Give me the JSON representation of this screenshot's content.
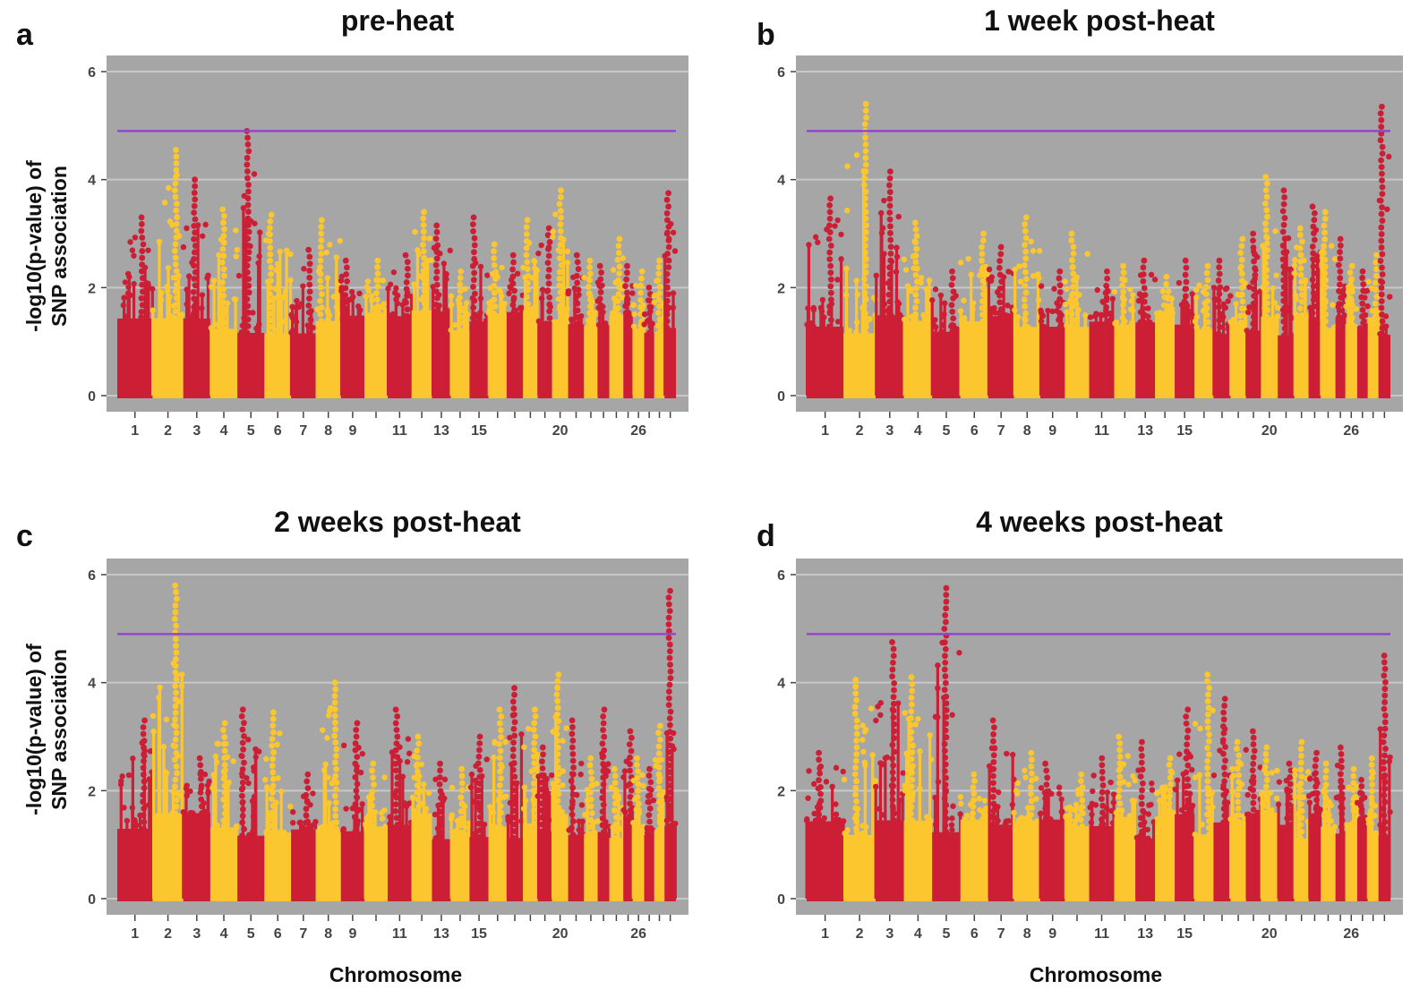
{
  "axis": {
    "ylabel_line1": "-log10(p-value) of",
    "ylabel_line2": "SNP association",
    "xlabel": "Chromosome"
  },
  "colors": {
    "odd_chromosome": "#cc1e35",
    "even_chromosome": "#fcc72e",
    "threshold_line": "#9046cf",
    "panel_background": "#a6a6a6",
    "gridline": "#c8c8c8"
  },
  "chart_data": [
    {
      "type": "scatter",
      "letter": "a",
      "title": "pre-heat",
      "xlabel": "Chromosome",
      "ylabel": "-log10(p-value) of SNP association",
      "ylim": [
        0,
        6.3
      ],
      "yticks": [
        0,
        2,
        4,
        6
      ],
      "threshold": 4.9,
      "xtick_labels": [
        "1",
        "2",
        "3",
        "4",
        "5",
        "6",
        "7",
        "8",
        "9",
        "11",
        "13",
        "15",
        "20",
        "26"
      ],
      "chromosome_peaks": [
        3.3,
        4.55,
        4.0,
        3.45,
        4.9,
        3.35,
        2.7,
        3.25,
        2.5,
        2.5,
        2.6,
        3.4,
        3.15,
        2.3,
        3.3,
        2.8,
        2.6,
        3.25,
        3.1,
        3.8,
        2.6,
        2.5,
        2.4,
        2.9,
        2.4,
        2.3,
        2.0,
        2.5,
        3.75
      ]
    },
    {
      "type": "scatter",
      "letter": "b",
      "title": "1 week post-heat",
      "xlabel": "Chromosome",
      "ylabel": "-log10(p-value) of SNP association",
      "ylim": [
        0,
        6.3
      ],
      "yticks": [
        0,
        2,
        4,
        6
      ],
      "threshold": 4.9,
      "xtick_labels": [
        "1",
        "2",
        "3",
        "4",
        "5",
        "6",
        "7",
        "8",
        "9",
        "11",
        "13",
        "15",
        "20",
        "26"
      ],
      "chromosome_peaks": [
        3.65,
        5.4,
        4.15,
        3.2,
        2.3,
        3.0,
        2.75,
        3.3,
        2.3,
        3.0,
        2.3,
        2.4,
        2.5,
        2.2,
        2.5,
        2.4,
        2.5,
        2.9,
        3.0,
        4.05,
        3.8,
        3.1,
        3.5,
        3.4,
        2.9,
        2.4,
        2.3,
        2.6,
        5.35
      ]
    },
    {
      "type": "scatter",
      "letter": "c",
      "title": "2 weeks post-heat",
      "xlabel": "Chromosome",
      "ylabel": "-log10(p-value) of SNP association",
      "ylim": [
        0,
        6.3
      ],
      "yticks": [
        0,
        2,
        4,
        6
      ],
      "threshold": 4.9,
      "xtick_labels": [
        "1",
        "2",
        "3",
        "4",
        "5",
        "6",
        "7",
        "8",
        "9",
        "11",
        "13",
        "15",
        "20",
        "26"
      ],
      "chromosome_peaks": [
        3.3,
        5.8,
        2.6,
        3.25,
        3.5,
        3.45,
        2.3,
        4.0,
        3.25,
        2.5,
        3.5,
        3.0,
        2.5,
        2.4,
        3.0,
        3.5,
        3.9,
        3.5,
        2.8,
        4.15,
        3.3,
        2.6,
        3.5,
        2.4,
        3.1,
        2.6,
        2.4,
        3.2,
        5.7
      ]
    },
    {
      "type": "scatter",
      "letter": "d",
      "title": "4 weeks post-heat",
      "xlabel": "Chromosome",
      "ylabel": "-log10(p-value) of SNP association",
      "ylim": [
        0,
        6.3
      ],
      "yticks": [
        0,
        2,
        4,
        6
      ],
      "threshold": 4.9,
      "xtick_labels": [
        "1",
        "2",
        "3",
        "4",
        "5",
        "6",
        "7",
        "8",
        "9",
        "11",
        "13",
        "15",
        "20",
        "26"
      ],
      "chromosome_peaks": [
        2.7,
        4.05,
        4.75,
        4.1,
        5.75,
        2.3,
        3.3,
        2.7,
        2.5,
        2.3,
        2.6,
        3.0,
        2.9,
        2.6,
        3.5,
        4.15,
        3.7,
        2.9,
        3.1,
        2.8,
        2.5,
        2.9,
        2.7,
        2.5,
        2.8,
        2.4,
        2.2,
        2.6,
        4.5
      ]
    }
  ]
}
